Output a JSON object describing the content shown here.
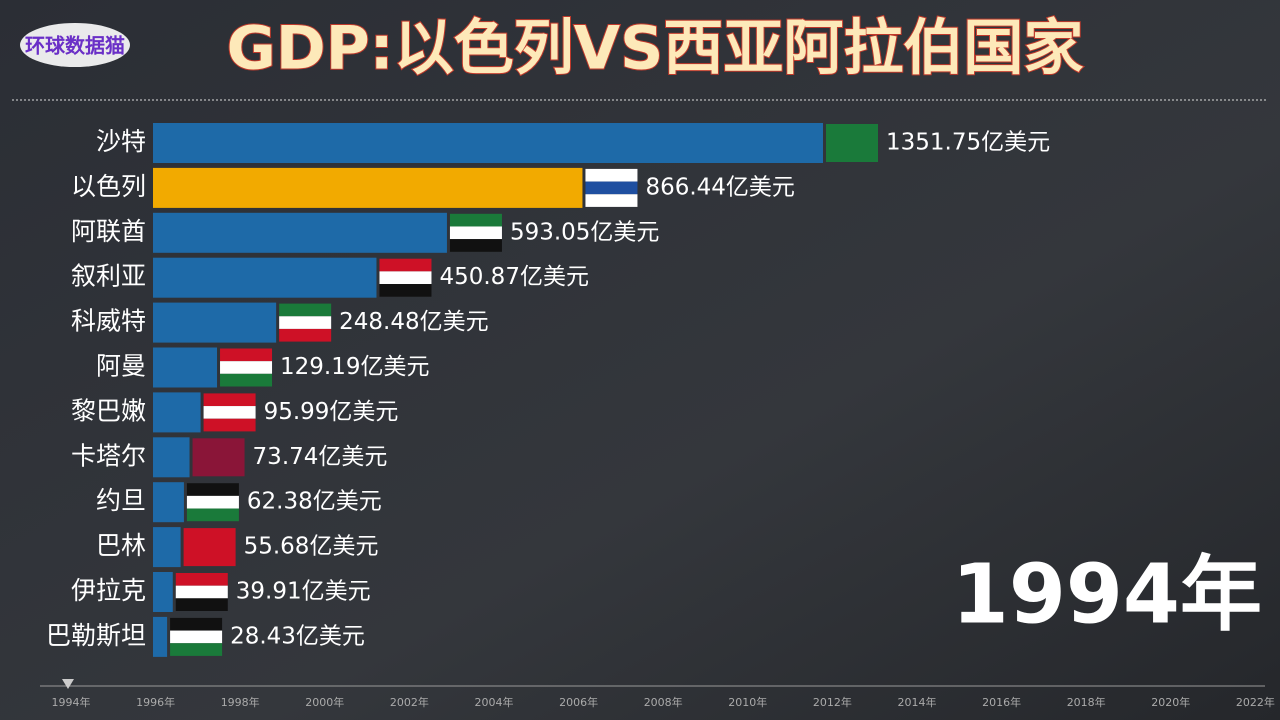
{
  "logo": "环球数据猫",
  "chart_data": {
    "type": "hbar",
    "title": "GDP:以色列VS西亚阿拉伯国家",
    "categories": [
      "沙特",
      "以色列",
      "阿联酋",
      "叙利亚",
      "科威特",
      "阿曼",
      "黎巴嫩",
      "卡塔尔",
      "约旦",
      "巴林",
      "伊拉克",
      "巴勒斯坦"
    ],
    "values": [
      1351.75,
      866.44,
      593.05,
      450.87,
      248.48,
      129.19,
      95.99,
      73.74,
      62.38,
      55.68,
      39.91,
      28.43
    ],
    "value_labels": [
      "1351.75亿美元",
      "866.44亿美元",
      "593.05亿美元",
      "450.87亿美元",
      "248.48亿美元",
      "129.19亿美元",
      "95.99亿美元",
      "73.74亿美元",
      "62.38亿美元",
      "55.68亿美元",
      "39.91亿美元",
      "28.43亿美元"
    ],
    "colors": [
      "#1e6aa8",
      "#f2aa00",
      "#1e6aa8",
      "#1e6aa8",
      "#1e6aa8",
      "#1e6aa8",
      "#1e6aa8",
      "#1e6aa8",
      "#1e6aa8",
      "#1e6aa8",
      "#1e6aa8",
      "#1e6aa8"
    ],
    "current_year": "1994年",
    "timeline": [
      "1994年",
      "1996年",
      "1998年",
      "2000年",
      "2002年",
      "2004年",
      "2006年",
      "2008年",
      "2010年",
      "2012年",
      "2014年",
      "2016年",
      "2018年",
      "2020年",
      "2022年"
    ]
  }
}
